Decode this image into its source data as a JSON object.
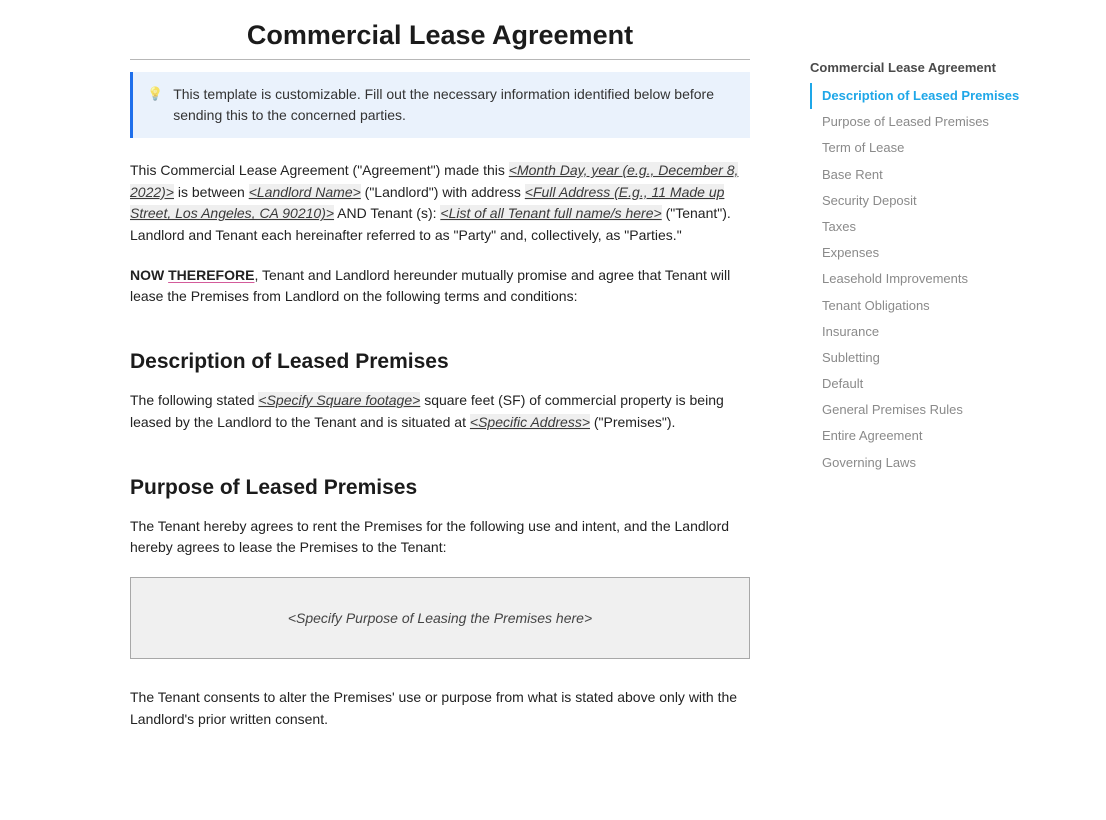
{
  "colors": {
    "background": "#ffffff",
    "text_primary": "#212121",
    "text_heading": "#1b1b1b",
    "notice_bg": "#eaf2fc",
    "notice_border": "#1f6feb",
    "fillable_bg": "#efefef",
    "title_rule": "#b7b7b7",
    "box_border": "#a8a8a8",
    "box_bg": "#f0f0f0",
    "toc_inactive": "#8a8a8a",
    "toc_active": "#1ea7e8",
    "therefore_underline": "#d35b9b"
  },
  "document": {
    "title": "Commercial Lease Agreement",
    "notice_icon": "💡",
    "notice_text": "This template is customizable. Fill out the necessary information identified below before sending this to the concerned parties.",
    "intro": {
      "t1": "This Commercial Lease Agreement (\"Agreement\") made this ",
      "fill_date": "<Month Day, year (e.g., December 8, 2022)>",
      "t2": " is between ",
      "fill_landlord": "<Landlord Name>",
      "t3": " (\"Landlord\") with address  ",
      "fill_address": "<Full Address (E.g., 11 Made up Street, Los Angeles, CA 90210)>",
      "t4": " AND Tenant (s): ",
      "fill_tenants": "<List of all Tenant full name/s here>",
      "t5": " (\"Tenant\"). Landlord and Tenant each hereinafter referred to as \"Party\" and, collectively, as \"Parties.\""
    },
    "now_therefore": {
      "bold": "NOW",
      "underscored": "THEREFORE",
      "rest": ", Tenant and Landlord hereunder mutually promise and agree that Tenant will lease the Premises from Landlord on the following terms and conditions:"
    },
    "sections": {
      "description": {
        "heading": "Description of Leased Premises",
        "p1_a": "The following stated ",
        "p1_fill_sqft": "<Specify Square footage>",
        "p1_b": " square feet (SF) of commercial property is being leased by the Landlord to the Tenant and is situated at ",
        "p1_fill_addr": "<Specific Address>",
        "p1_c": " (\"Premises\")."
      },
      "purpose": {
        "heading": "Purpose of Leased Premises",
        "p1": "The Tenant hereby agrees to rent the Premises for the following use and intent, and the Landlord hereby agrees to lease the Premises to the Tenant:",
        "placeholder_box": "<Specify Purpose of Leasing the Premises here>",
        "p2": "The Tenant consents to alter the Premises' use or purpose from what is stated above only with the Landlord's prior written consent."
      }
    }
  },
  "toc": {
    "title": "Commercial Lease Agreement",
    "active_index": 0,
    "items": [
      "Description of Leased Premises",
      "Purpose of Leased Premises",
      "Term of Lease",
      "Base Rent",
      "Security Deposit",
      "Taxes",
      "Expenses",
      "Leasehold Improvements",
      "Tenant Obligations",
      "Insurance",
      "Subletting",
      "Default",
      "General Premises Rules",
      "Entire Agreement",
      "Governing Laws"
    ]
  }
}
